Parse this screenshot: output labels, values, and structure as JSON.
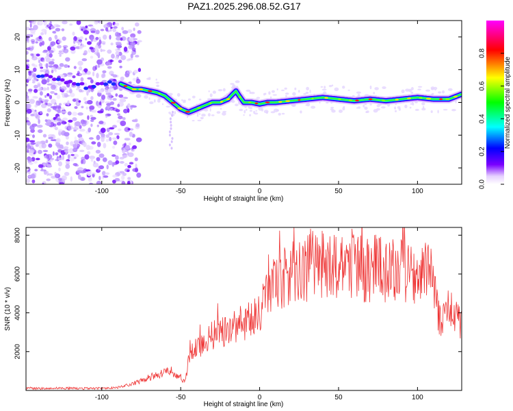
{
  "title": "PAZ1.2025.296.08.52.G17",
  "chart_data": [
    {
      "type": "heatmap",
      "title": "PAZ1.2025.296.08.52.G17",
      "xlabel": "Height of straight line (km)",
      "ylabel": "Frequency (Hz)",
      "xlim": [
        -148,
        128
      ],
      "ylim": [
        -25,
        25
      ],
      "xticks": [
        "-100",
        "-50",
        "0",
        "50",
        "100"
      ],
      "yticks": [
        "-20",
        "-10",
        "0",
        "10",
        "20"
      ],
      "ridge": {
        "x": [
          -138,
          -130,
          -120,
          -110,
          -100,
          -90,
          -85,
          -80,
          -75,
          -70,
          -65,
          -60,
          -55,
          -50,
          -45,
          -40,
          -35,
          -30,
          -25,
          -20,
          -17,
          -15,
          -13,
          -10,
          -5,
          0,
          5,
          10,
          20,
          30,
          40,
          50,
          60,
          70,
          80,
          90,
          100,
          110,
          120,
          128
        ],
        "freq": [
          8,
          7,
          6,
          5,
          6,
          6,
          5,
          4,
          4,
          3.5,
          3,
          2,
          0,
          -2,
          -3,
          -2,
          -1,
          0,
          0,
          1,
          2.5,
          3.5,
          2,
          0,
          0,
          -0.5,
          0,
          0,
          0.5,
          1,
          1.5,
          1,
          0.5,
          1,
          0.5,
          1,
          1.5,
          1,
          1,
          2.5
        ]
      },
      "colorbar": {
        "label": "Normalized spectral amplitude",
        "range": [
          0,
          1
        ],
        "ticks": [
          "0.0",
          "0.2",
          "0.4",
          "0.6",
          "0.8"
        ],
        "colors": [
          "#ffffff",
          "#e6d0ff",
          "#7a00ff",
          "#0000ff",
          "#00ffff",
          "#00ff00",
          "#ffff00",
          "#ff0000",
          "#ff00ff"
        ]
      }
    },
    {
      "type": "line",
      "xlabel": "Height of straight line (km)",
      "ylabel": "SNR (10 * v/v)",
      "xlim": [
        -148,
        128
      ],
      "ylim": [
        0,
        8400
      ],
      "xticks": [
        "-100",
        "-50",
        "0",
        "50",
        "100"
      ],
      "yticks": [
        "2000",
        "4000",
        "6000",
        "8000"
      ],
      "color": "#ee3333",
      "series": [
        {
          "name": "SNR",
          "x": [
            -148,
            -140,
            -130,
            -120,
            -110,
            -100,
            -90,
            -85,
            -80,
            -75,
            -70,
            -65,
            -60,
            -58,
            -55,
            -52,
            -50,
            -47,
            -45,
            -40,
            -35,
            -30,
            -25,
            -20,
            -15,
            -10,
            -5,
            0,
            5,
            10,
            20,
            30,
            35,
            40,
            45,
            50,
            60,
            70,
            80,
            90,
            100,
            105,
            108,
            110,
            112,
            115,
            120,
            125,
            128
          ],
          "values": [
            100,
            100,
            120,
            110,
            100,
            100,
            150,
            250,
            350,
            500,
            650,
            800,
            900,
            1100,
            950,
            800,
            550,
            500,
            1500,
            2300,
            2500,
            2900,
            3100,
            3000,
            3300,
            3500,
            3600,
            4000,
            5000,
            5500,
            6000,
            6300,
            6800,
            6500,
            6200,
            6400,
            6300,
            6300,
            6200,
            6100,
            6000,
            6000,
            5800,
            5700,
            4200,
            3800,
            3700,
            3600,
            3600
          ]
        }
      ]
    }
  ]
}
